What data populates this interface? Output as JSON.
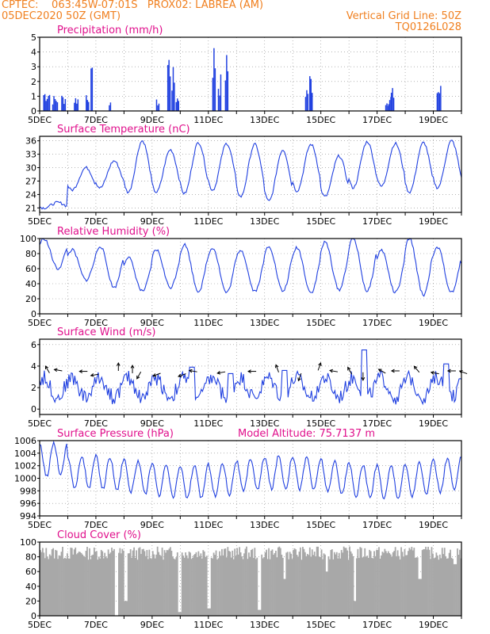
{
  "header": {
    "line1_left": "CPTEC:    063:45W-07:01S   PROX02: LABREA (AM)",
    "line2_left": "05DEC2020 50Z (GMT)",
    "line2_right": "Vertical Grid Line: 50Z",
    "line3_right": "TQ0126L028",
    "color": "#f08020"
  },
  "colors": {
    "title": "#e0108c",
    "line": "#2040e0",
    "cloud": "#a8a8a8",
    "axis": "#000000",
    "grid": "#888888"
  },
  "extra_label": "Model Altitude: 75.7137 m",
  "x_ticks": [
    "5DEC",
    "7DEC",
    "9DEC",
    "11DEC",
    "13DEC",
    "15DEC",
    "17DEC",
    "19DEC"
  ],
  "chart_data": [
    {
      "id": "precip",
      "type": "bar",
      "title": "Precipitation (mm/h)",
      "ylim": [
        0,
        5
      ],
      "yticks": [
        0,
        1,
        2,
        3,
        4,
        5
      ],
      "x_days": 15,
      "n": 360,
      "events": [
        [
          0.25,
          1.6,
          6
        ],
        [
          0.55,
          1.1,
          5
        ],
        [
          0.85,
          1.2,
          4
        ],
        [
          1.3,
          1.1,
          4
        ],
        [
          1.7,
          1.6,
          3
        ],
        [
          1.85,
          3.0,
          2
        ],
        [
          2.5,
          0.9,
          2
        ],
        [
          4.2,
          0.8,
          3
        ],
        [
          4.6,
          4.4,
          3
        ],
        [
          4.75,
          3.0,
          3
        ],
        [
          4.9,
          1.2,
          3
        ],
        [
          6.2,
          5.0,
          3
        ],
        [
          6.4,
          2.6,
          3
        ],
        [
          6.65,
          4.1,
          3
        ],
        [
          9.5,
          1.9,
          3
        ],
        [
          9.65,
          2.8,
          3
        ],
        [
          12.35,
          0.8,
          3
        ],
        [
          12.45,
          1.2,
          3
        ],
        [
          12.55,
          1.6,
          3
        ],
        [
          14.2,
          1.9,
          4
        ]
      ]
    },
    {
      "id": "temp",
      "type": "line",
      "title": "Surface Temperature (nC)",
      "ylim": [
        20,
        37
      ],
      "yticks": [
        21,
        24,
        27,
        30,
        33,
        36
      ],
      "x_days": 15,
      "samples_per_day": 24,
      "peaks": [
        22.2,
        30,
        31.5,
        36,
        34,
        35.6,
        35.4,
        35.2,
        34,
        35.2,
        32.6,
        35.8,
        35.4,
        35.6,
        36,
        35.6
      ],
      "troughs": [
        21,
        25,
        25.5,
        24.5,
        24.5,
        24.2,
        25,
        23.5,
        22.5,
        24.8,
        23.5,
        25.5,
        25.8,
        24.5,
        25.5,
        26
      ]
    },
    {
      "id": "rh",
      "type": "line",
      "title": "Relative Humidity (%)",
      "ylim": [
        0,
        100
      ],
      "yticks": [
        0,
        20,
        40,
        60,
        80,
        100
      ],
      "x_days": 15,
      "samples_per_day": 24,
      "peaks": [
        100,
        85,
        90,
        75,
        85,
        92,
        88,
        85,
        90,
        88,
        95,
        100,
        85,
        100,
        88,
        75
      ],
      "troughs": [
        60,
        45,
        35,
        30,
        35,
        30,
        28,
        30,
        30,
        28,
        32,
        30,
        28,
        25,
        28,
        28
      ]
    },
    {
      "id": "wind",
      "type": "line",
      "title": "Surface Wind (m/s)",
      "ylim": [
        -0.5,
        6.5
      ],
      "yticks": [
        0,
        2,
        4,
        6
      ],
      "x_days": 15,
      "samples_per_day": 24,
      "base": 2.0,
      "amp": 0.9,
      "spikes": [
        [
          5.4,
          3.9
        ],
        [
          6.8,
          3.3
        ],
        [
          8.7,
          3.6
        ],
        [
          11.55,
          5.5
        ],
        [
          14.45,
          4.2
        ]
      ],
      "arrow_y": 3.2,
      "arrows": [
        [
          0.35,
          120
        ],
        [
          0.8,
          170
        ],
        [
          1.7,
          180
        ],
        [
          2.1,
          190
        ],
        [
          2.8,
          90
        ],
        [
          3.3,
          90
        ],
        [
          3.6,
          240
        ],
        [
          4.3,
          200
        ],
        [
          5.2,
          200
        ],
        [
          5.6,
          170
        ],
        [
          6.6,
          190
        ],
        [
          7.7,
          180
        ],
        [
          8.5,
          110
        ],
        [
          9.3,
          250
        ],
        [
          9.9,
          70
        ],
        [
          10.6,
          170
        ],
        [
          11.1,
          120
        ],
        [
          11.5,
          270
        ],
        [
          12.3,
          150
        ],
        [
          12.8,
          180
        ],
        [
          13.5,
          130
        ],
        [
          14.2,
          170
        ],
        [
          14.8,
          180
        ],
        [
          15.2,
          160
        ]
      ]
    },
    {
      "id": "pres",
      "type": "line",
      "title": "Surface Pressure (hPa)",
      "ylim": [
        994,
        1006
      ],
      "yticks": [
        994,
        996,
        998,
        1000,
        1002,
        1004,
        1006
      ],
      "x_days": 15,
      "samples_per_day": 24,
      "mean": 1000.2,
      "amp": 2.6
    },
    {
      "id": "cloud",
      "type": "bar",
      "title": "Cloud Cover (%)",
      "ylim": [
        0,
        100
      ],
      "yticks": [
        0,
        20,
        40,
        60,
        80,
        100
      ],
      "x_days": 15,
      "n": 360,
      "base": 85,
      "drops": [
        [
          2.7,
          0
        ],
        [
          3.05,
          20
        ],
        [
          4.95,
          5
        ],
        [
          6.0,
          10
        ],
        [
          7.8,
          8
        ],
        [
          8.7,
          50
        ],
        [
          11.2,
          20
        ],
        [
          13.5,
          50
        ],
        [
          14.75,
          70
        ],
        [
          10.2,
          60
        ]
      ]
    }
  ]
}
